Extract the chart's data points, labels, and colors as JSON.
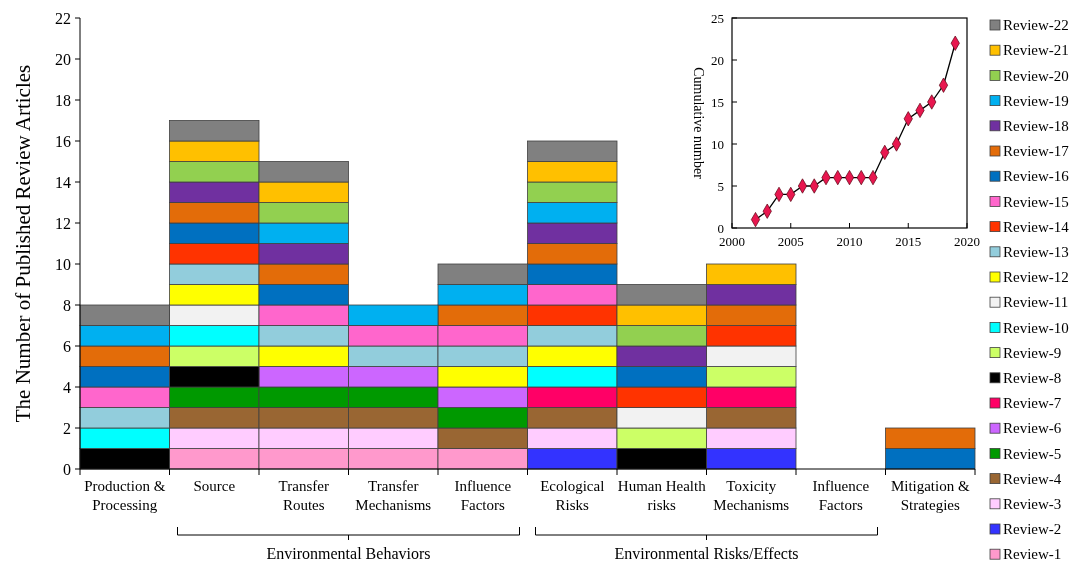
{
  "chart_data": [
    {
      "type": "bar",
      "stacked": true,
      "ylabel": "The Number of Published Review Articles",
      "categories": [
        "Production & Processing",
        "Source",
        "Transfer Routes",
        "Transfer Mechanisms",
        "Influence Factors",
        "Ecological Risks",
        "Human Health risks",
        "Toxicity Mechanisms",
        "Influence Factors",
        "Mitigation & Strategies"
      ],
      "ylim": [
        0,
        22
      ],
      "yticks": [
        0,
        2,
        4,
        6,
        8,
        10,
        12,
        14,
        16,
        18,
        20,
        22
      ],
      "legend": "right",
      "annotations": [
        "Environmental Behaviors",
        "Environmental Risks/Effects"
      ],
      "series": [
        {
          "name": "Review-1",
          "color": "#ff99cc",
          "values": [
            0,
            1,
            1,
            1,
            1,
            0,
            0,
            0,
            0,
            0
          ]
        },
        {
          "name": "Review-2",
          "color": "#3333ff",
          "values": [
            0,
            0,
            0,
            0,
            0,
            1,
            0,
            1,
            0,
            0
          ]
        },
        {
          "name": "Review-3",
          "color": "#ffccff",
          "values": [
            0,
            1,
            1,
            1,
            0,
            1,
            0,
            1,
            0,
            0
          ]
        },
        {
          "name": "Review-4",
          "color": "#996633",
          "values": [
            0,
            1,
            1,
            1,
            1,
            1,
            0,
            1,
            0,
            0
          ]
        },
        {
          "name": "Review-5",
          "color": "#009900",
          "values": [
            0,
            1,
            1,
            1,
            1,
            0,
            0,
            0,
            0,
            0
          ]
        },
        {
          "name": "Review-6",
          "color": "#cc66ff",
          "values": [
            0,
            0,
            1,
            1,
            1,
            0,
            0,
            0,
            0,
            0
          ]
        },
        {
          "name": "Review-7",
          "color": "#ff0066",
          "values": [
            0,
            0,
            0,
            0,
            0,
            1,
            0,
            1,
            0,
            0
          ]
        },
        {
          "name": "Review-8",
          "color": "#000000",
          "values": [
            1,
            1,
            0,
            0,
            0,
            0,
            1,
            0,
            0,
            0
          ]
        },
        {
          "name": "Review-9",
          "color": "#ccff66",
          "values": [
            0,
            1,
            0,
            0,
            0,
            0,
            1,
            1,
            0,
            0
          ]
        },
        {
          "name": "Review-10",
          "color": "#00ffff",
          "values": [
            1,
            1,
            0,
            0,
            0,
            1,
            0,
            0,
            0,
            0
          ]
        },
        {
          "name": "Review-11",
          "color": "#f2f2f2",
          "values": [
            0,
            1,
            0,
            0,
            0,
            0,
            1,
            1,
            0,
            0
          ]
        },
        {
          "name": "Review-12",
          "color": "#ffff00",
          "values": [
            0,
            1,
            1,
            0,
            1,
            1,
            0,
            0,
            0,
            0
          ]
        },
        {
          "name": "Review-13",
          "color": "#92cddc",
          "values": [
            1,
            1,
            1,
            1,
            1,
            1,
            0,
            0,
            0,
            0
          ]
        },
        {
          "name": "Review-14",
          "color": "#ff3300",
          "values": [
            0,
            1,
            0,
            0,
            0,
            1,
            1,
            1,
            0,
            0
          ]
        },
        {
          "name": "Review-15",
          "color": "#ff66cc",
          "values": [
            1,
            0,
            1,
            1,
            1,
            1,
            0,
            0,
            0,
            0
          ]
        },
        {
          "name": "Review-16",
          "color": "#0070c0",
          "values": [
            1,
            1,
            1,
            0,
            0,
            1,
            1,
            0,
            0,
            1
          ]
        },
        {
          "name": "Review-17",
          "color": "#e36c09",
          "values": [
            1,
            1,
            1,
            0,
            1,
            1,
            0,
            1,
            0,
            1
          ]
        },
        {
          "name": "Review-18",
          "color": "#7030a0",
          "values": [
            0,
            1,
            1,
            0,
            0,
            1,
            1,
            1,
            0,
            0
          ]
        },
        {
          "name": "Review-19",
          "color": "#00b0f0",
          "values": [
            1,
            0,
            1,
            1,
            1,
            1,
            0,
            0,
            0,
            0
          ]
        },
        {
          "name": "Review-20",
          "color": "#92d050",
          "values": [
            0,
            1,
            1,
            0,
            0,
            1,
            1,
            0,
            0,
            0
          ]
        },
        {
          "name": "Review-21",
          "color": "#ffc000",
          "values": [
            0,
            1,
            1,
            0,
            0,
            1,
            1,
            1,
            0,
            0
          ]
        },
        {
          "name": "Review-22",
          "color": "#808080",
          "values": [
            1,
            1,
            1,
            0,
            1,
            1,
            1,
            0,
            0,
            0
          ]
        }
      ]
    },
    {
      "type": "line",
      "ylabel": "Cumulative number",
      "marker": "diamond",
      "x": [
        2002,
        2003,
        2004,
        2005,
        2006,
        2007,
        2008,
        2009,
        2010,
        2011,
        2012,
        2013,
        2014,
        2015,
        2016,
        2017,
        2018,
        2019
      ],
      "values": [
        1,
        2,
        4,
        4,
        5,
        5,
        6,
        6,
        6,
        6,
        6,
        9,
        10,
        13,
        14,
        15,
        17,
        22
      ],
      "color": "#e8174f",
      "xlim": [
        2000,
        2020
      ],
      "xticks": [
        2000,
        2005,
        2010,
        2015,
        2020
      ],
      "ylim": [
        0,
        25
      ],
      "yticks": [
        0,
        5,
        10,
        15,
        20,
        25
      ]
    }
  ]
}
